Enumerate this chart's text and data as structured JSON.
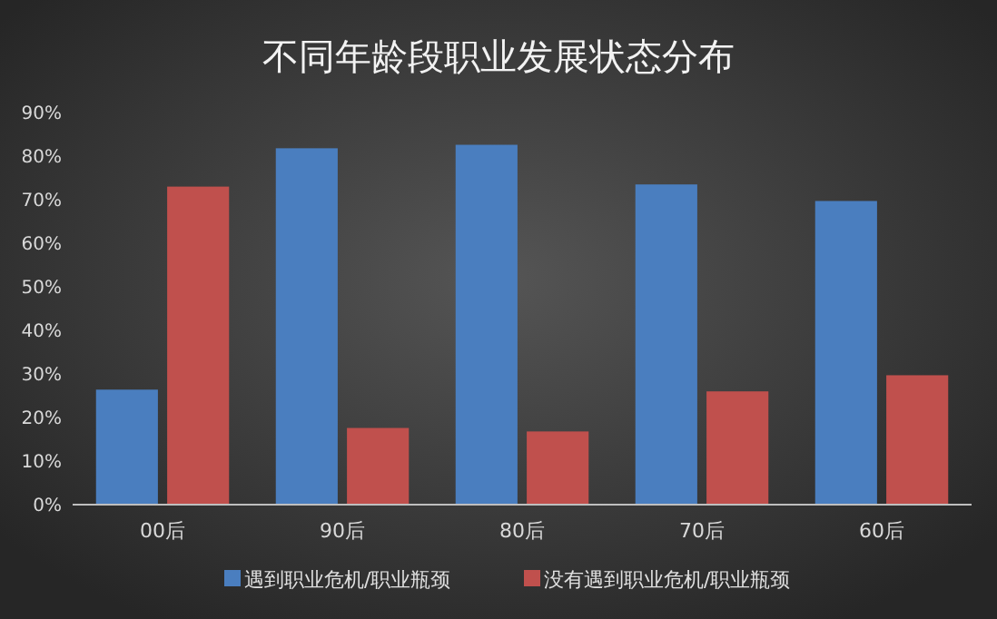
{
  "chart_data": {
    "type": "bar",
    "title": "不同年龄段职业发展状态分布",
    "categories": [
      "00后",
      "90后",
      "80后",
      "70后",
      "60后"
    ],
    "series": [
      {
        "name": "遇到职业危机/职业瓶颈",
        "color": "#4a7ebf",
        "values": [
          26.4,
          81.8,
          82.6,
          73.5,
          69.7
        ]
      },
      {
        "name": "没有遇到职业危机/职业瓶颈",
        "color": "#c0504d",
        "values": [
          73,
          17.6,
          16.8,
          26,
          29.7
        ]
      }
    ],
    "ylim": [
      0,
      90
    ],
    "yticks": [
      {
        "value": 0,
        "label": "0%"
      },
      {
        "value": 10,
        "label": "10%"
      },
      {
        "value": 20,
        "label": "20%"
      },
      {
        "value": 30,
        "label": "30%"
      },
      {
        "value": 40,
        "label": "40%"
      },
      {
        "value": 50,
        "label": "50%"
      },
      {
        "value": 60,
        "label": "60%"
      },
      {
        "value": 70,
        "label": "70%"
      },
      {
        "value": 80,
        "label": "80%"
      },
      {
        "value": 90,
        "label": "90%"
      }
    ],
    "grid": false,
    "legend": "bottom"
  }
}
